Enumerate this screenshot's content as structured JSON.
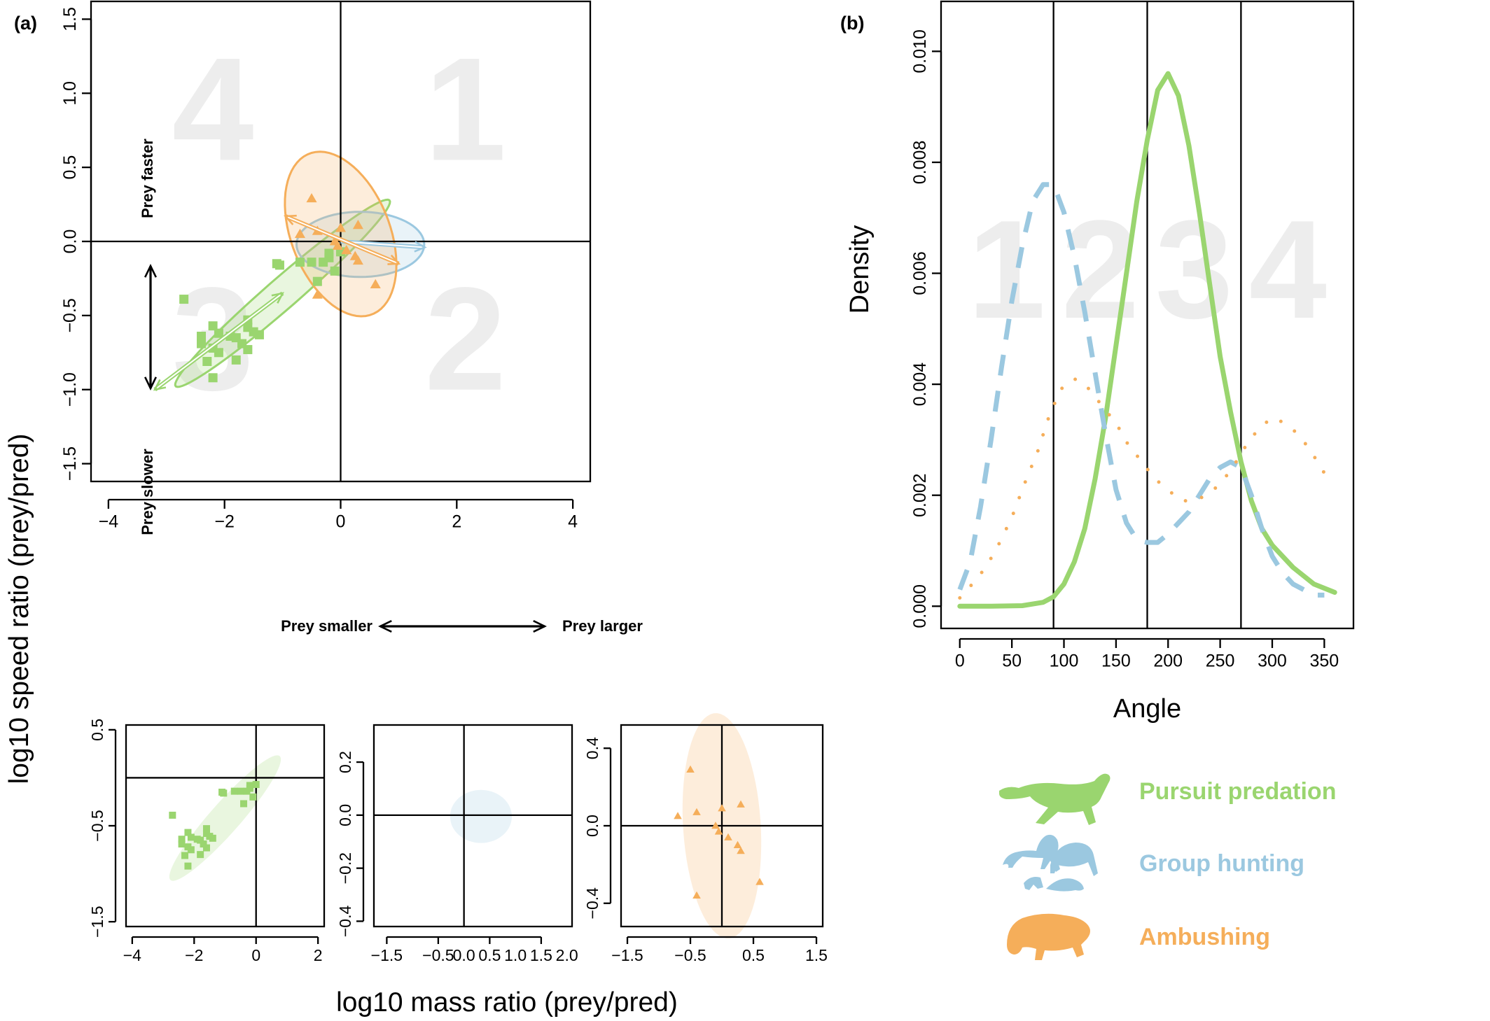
{
  "panel_labels": {
    "a": "(a)",
    "b": "(b)"
  },
  "colors": {
    "pursuit": "#9ad56f",
    "group": "#9bc8e0",
    "ambush": "#f5ae5a",
    "quadrant_digits": "#ededed"
  },
  "annotations": {
    "prey_faster": "Prey faster",
    "prey_slower": "Prey slower",
    "prey_smaller": "Prey smaller",
    "prey_larger": "Prey larger",
    "quadrants": [
      "1",
      "2",
      "3",
      "4"
    ]
  },
  "shared_labels": {
    "ylabel": "log10 speed ratio (prey/pred)",
    "xlabel": "log10 mass ratio (prey/pred)"
  },
  "legend": [
    {
      "label": "Pursuit predation",
      "color": "#9ad56f",
      "icon": "cheetah-silhouette-icon"
    },
    {
      "label": "Group hunting",
      "color": "#9bc8e0",
      "icon": "lions-silhouette-icon"
    },
    {
      "label": "Ambushing",
      "color": "#f5ae5a",
      "icon": "cat-silhouette-icon"
    }
  ],
  "chart_data": [
    {
      "id": "main_scatter",
      "type": "scatter",
      "xlim": [
        -4.3,
        4.3
      ],
      "ylim": [
        -1.62,
        1.62
      ],
      "xticks": [
        -4,
        -2,
        0,
        2,
        4
      ],
      "yticks": [
        -1.5,
        -1.0,
        -0.5,
        0.0,
        0.5,
        1.0,
        1.5
      ],
      "tick_labels_x": [
        "−4",
        "−2",
        "0",
        "2",
        "4"
      ],
      "tick_labels_y": [
        "−1.5",
        "−1.0",
        "−0.5",
        "0.0",
        "0.5",
        "1.0",
        "1.5"
      ],
      "reference_lines": {
        "x": 0,
        "y": 0
      },
      "series": [
        {
          "key": "pursuit",
          "marker": "square",
          "points": [
            [
              -2.7,
              -0.39
            ],
            [
              -2.4,
              -0.64
            ],
            [
              -2.2,
              -0.57
            ],
            [
              -2.1,
              -0.62
            ],
            [
              -2.4,
              -0.69
            ],
            [
              -2.2,
              -0.72
            ],
            [
              -1.9,
              -0.64
            ],
            [
              -1.8,
              -0.65
            ],
            [
              -2.1,
              -0.75
            ],
            [
              -1.8,
              -0.8
            ],
            [
              -2.3,
              -0.81
            ],
            [
              -2.2,
              -0.92
            ],
            [
              -1.6,
              -0.53
            ],
            [
              -1.6,
              -0.58
            ],
            [
              -1.5,
              -0.61
            ],
            [
              -1.4,
              -0.63
            ],
            [
              -1.6,
              -0.73
            ],
            [
              -1.7,
              -0.69
            ],
            [
              -0.4,
              -0.27
            ],
            [
              -0.5,
              -0.14
            ],
            [
              -0.7,
              -0.14
            ],
            [
              -1.1,
              -0.15
            ],
            [
              -1.05,
              -0.16
            ],
            [
              -0.3,
              -0.14
            ],
            [
              -0.2,
              -0.11
            ],
            [
              -0.1,
              -0.2
            ],
            [
              -0.2,
              -0.08
            ],
            [
              0.0,
              -0.07
            ]
          ],
          "ellipse": {
            "center": [
              -1.0,
              -0.35
            ],
            "semi_major_xy": [
              1.85,
              0.62
            ],
            "semi_minor_len": 0.13
          },
          "arrow": {
            "from": [
              -1.0,
              -0.35
            ],
            "to": [
              -3.2,
              -1.0
            ],
            "double_headed": true
          }
        },
        {
          "key": "group",
          "marker": "none",
          "points": [],
          "ellipse": {
            "center": [
              0.34,
              -0.02
            ],
            "semi_major_xy": [
              1.1,
              0.0
            ],
            "semi_minor_len": 0.22
          },
          "arrow": {
            "from": [
              0.0,
              0.0
            ],
            "to": [
              1.45,
              -0.04
            ],
            "double_headed": false
          }
        },
        {
          "key": "ambush",
          "marker": "triangle",
          "points": [
            [
              -0.5,
              0.29
            ],
            [
              -0.7,
              0.05
            ],
            [
              -0.4,
              0.07
            ],
            [
              0.0,
              0.09
            ],
            [
              0.3,
              0.11
            ],
            [
              -0.1,
              0.0
            ],
            [
              -0.05,
              -0.03
            ],
            [
              0.1,
              -0.06
            ],
            [
              0.3,
              -0.13
            ],
            [
              0.6,
              -0.29
            ],
            [
              -0.4,
              -0.36
            ],
            [
              0.25,
              -0.1
            ]
          ],
          "ellipse": {
            "center": [
              0.0,
              0.05
            ],
            "semi_major_xy": [
              0.95,
              -0.28
            ],
            "semi_minor_len": 0.5
          },
          "arrow": {
            "from": [
              -0.95,
              0.17
            ],
            "to": [
              1.0,
              -0.15
            ],
            "double_headed": true
          }
        }
      ]
    },
    {
      "id": "small_pursuit",
      "type": "scatter",
      "series_key": "pursuit",
      "xlim": [
        -4.2,
        2.2
      ],
      "ylim": [
        -1.55,
        0.55
      ],
      "xticks": [
        -4,
        -2,
        0,
        2
      ],
      "yticks": [
        -1.5,
        -0.5,
        0.5
      ],
      "tick_labels_x": [
        "−4",
        "−2",
        "0",
        "2"
      ],
      "tick_labels_y": [
        "−1.5",
        "−0.5",
        "0.5"
      ],
      "reference_lines": {
        "x": 0,
        "y": 0
      },
      "ellipse": {
        "center": [
          -1.0,
          -0.42
        ],
        "semi_major_xy": [
          1.8,
          0.62
        ],
        "semi_minor_len": 0.22
      }
    },
    {
      "id": "small_group",
      "type": "scatter",
      "series_key": "group",
      "xlim": [
        -1.75,
        2.1
      ],
      "ylim": [
        -0.42,
        0.34
      ],
      "xticks": [
        -1.5,
        -0.5,
        0.5,
        1.5
      ],
      "yticks": [
        -0.4,
        -0.2,
        0.0,
        0.2
      ],
      "tick_labels_x": [
        "−1.5",
        "−0.5",
        "0.5",
        "1.5"
      ],
      "tick_labels_y": [
        "−0.4",
        "−0.2",
        "0.0",
        "0.2"
      ],
      "extra_x_labels": [
        [
          "0.0",
          0.0
        ],
        [
          "1.0",
          1.0
        ],
        [
          "2.0",
          2.0
        ]
      ],
      "reference_lines": {
        "x": 0,
        "y": 0
      },
      "ellipse": {
        "center": [
          0.33,
          -0.005
        ],
        "semi_major_xy": [
          0.6,
          0.0
        ],
        "semi_minor_len": 0.1
      }
    },
    {
      "id": "small_ambush",
      "type": "scatter",
      "series_key": "ambush",
      "xlim": [
        -1.6,
        1.6
      ],
      "ylim": [
        -0.52,
        0.52
      ],
      "xticks": [
        -1.5,
        -0.5,
        0.5,
        1.5
      ],
      "yticks": [
        -0.4,
        0.0,
        0.4
      ],
      "tick_labels_x": [
        "−1.5",
        "−0.5",
        "0.5",
        "1.5"
      ],
      "tick_labels_y": [
        "−0.4",
        "0.0",
        "0.4"
      ],
      "reference_lines": {
        "x": 0,
        "y": 0
      },
      "ellipse": {
        "center": [
          0.0,
          0.0
        ],
        "semi_major_xy": [
          0.55,
          -0.35
        ],
        "semi_minor_len": 0.55
      }
    },
    {
      "id": "density_plot",
      "type": "line",
      "xlabel": "Angle",
      "ylabel": "Density",
      "xlim": [
        -18,
        378
      ],
      "ylim": [
        -0.0004,
        0.0109
      ],
      "xticks": [
        0,
        50,
        100,
        150,
        200,
        250,
        300,
        350
      ],
      "yticks": [
        0.0,
        0.002,
        0.004,
        0.006,
        0.008,
        0.01
      ],
      "tick_labels_x": [
        "0",
        "50",
        "100",
        "150",
        "200",
        "250",
        "300",
        "350"
      ],
      "tick_labels_y": [
        "0.000",
        "0.002",
        "0.004",
        "0.006",
        "0.008",
        "0.010"
      ],
      "vlines": [
        90,
        180,
        270
      ],
      "quadrant_label_x": [
        45,
        135,
        225,
        315
      ],
      "series": [
        {
          "key": "pursuit",
          "style": "solid",
          "x": [
            0,
            30,
            60,
            80,
            90,
            100,
            110,
            120,
            130,
            140,
            150,
            160,
            170,
            180,
            190,
            200,
            210,
            220,
            230,
            240,
            250,
            260,
            270,
            280,
            290,
            300,
            320,
            340,
            360
          ],
          "y": [
            0.0,
            0.0,
            1e-05,
            7e-05,
            0.00017,
            0.0004,
            0.0008,
            0.0014,
            0.0023,
            0.0034,
            0.0047,
            0.006,
            0.0073,
            0.0084,
            0.0093,
            0.0096,
            0.0092,
            0.0083,
            0.0071,
            0.0058,
            0.0045,
            0.0035,
            0.0026,
            0.0019,
            0.0014,
            0.0011,
            0.0007,
            0.0004,
            0.00025
          ]
        },
        {
          "key": "group",
          "style": "dashed",
          "x": [
            0,
            10,
            20,
            30,
            40,
            50,
            60,
            70,
            80,
            90,
            100,
            110,
            120,
            130,
            140,
            150,
            160,
            170,
            180,
            190,
            200,
            210,
            220,
            230,
            240,
            250,
            260,
            270,
            280,
            290,
            300,
            310,
            320,
            330,
            340,
            350
          ],
          "y": [
            0.0003,
            0.0008,
            0.0018,
            0.003,
            0.0043,
            0.0055,
            0.0065,
            0.0073,
            0.0076,
            0.0076,
            0.0071,
            0.0063,
            0.0053,
            0.0042,
            0.0031,
            0.0021,
            0.0015,
            0.0012,
            0.00115,
            0.00115,
            0.0013,
            0.0015,
            0.0017,
            0.002,
            0.0023,
            0.0025,
            0.0026,
            0.0025,
            0.002,
            0.0014,
            0.0009,
            0.0006,
            0.0004,
            0.0003,
            0.0002,
            0.0002
          ]
        },
        {
          "key": "ambush",
          "style": "dotted",
          "x": [
            0,
            12,
            25,
            37,
            50,
            62,
            75,
            87,
            100,
            112,
            125,
            137,
            150,
            162,
            175,
            187,
            200,
            212,
            225,
            237,
            250,
            262,
            275,
            287,
            300,
            312,
            325,
            337,
            350
          ],
          "y": [
            0.00015,
            0.0004,
            0.0007,
            0.0011,
            0.0016,
            0.0022,
            0.0028,
            0.0035,
            0.004,
            0.0041,
            0.0039,
            0.0036,
            0.0033,
            0.0029,
            0.0026,
            0.0023,
            0.0021,
            0.0019,
            0.0019,
            0.002,
            0.0022,
            0.0025,
            0.0029,
            0.0032,
            0.0034,
            0.0033,
            0.0031,
            0.0028,
            0.0024
          ]
        }
      ]
    }
  ]
}
